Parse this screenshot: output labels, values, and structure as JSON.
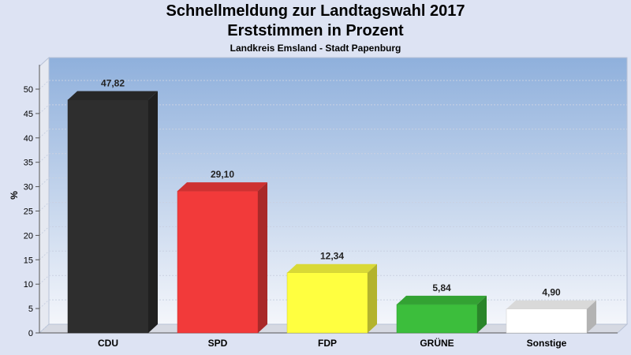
{
  "chart_data": {
    "type": "bar",
    "title": "Schnellmeldung zur Landtagswahl 2017",
    "subtitle": "Erststimmen in Prozent",
    "subsubtitle": "Landkreis Emsland - Stadt Papenburg",
    "ylabel": "%",
    "xlabel": "",
    "ylim": [
      0,
      55
    ],
    "yticks": [
      0,
      5,
      10,
      15,
      20,
      25,
      30,
      35,
      40,
      45,
      50
    ],
    "grid": true,
    "categories": [
      "CDU",
      "SPD",
      "FDP",
      "GRÜNE",
      "Sonstige"
    ],
    "values": [
      47.82,
      29.1,
      12.34,
      5.84,
      4.9
    ],
    "value_labels": [
      "47,82",
      "29,10",
      "12,34",
      "5,84",
      "4,90"
    ],
    "colors": [
      "#2e2e2e",
      "#f23a3a",
      "#ffff40",
      "#3cbe3c",
      "#ffffff"
    ]
  }
}
